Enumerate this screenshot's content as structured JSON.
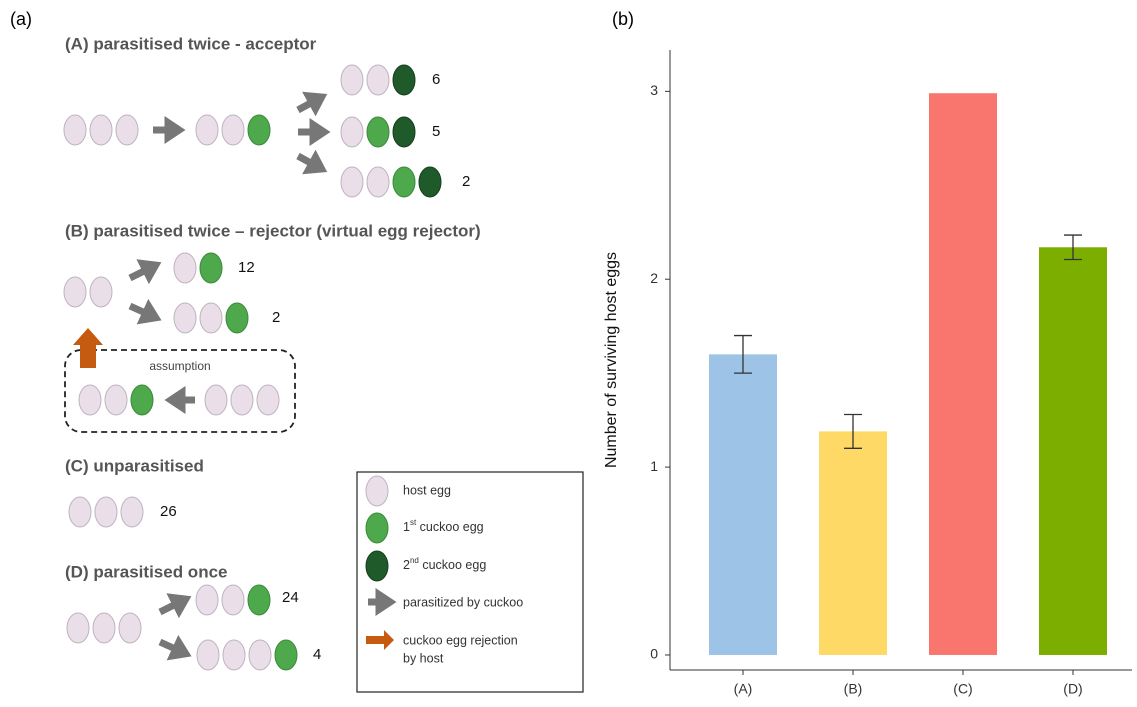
{
  "panel_a": {
    "label": "(a)",
    "groups": [
      {
        "title": "(A) parasitised twice - acceptor",
        "counts": [
          6,
          5,
          2
        ]
      },
      {
        "title": "(B) parasitised twice – rejector (virtual egg rejector)",
        "counts": [
          12,
          2
        ],
        "assumption": "assumption"
      },
      {
        "title": "(C) unparasitised",
        "counts": [
          26
        ]
      },
      {
        "title": "(D) parasitised once",
        "counts": [
          24,
          4
        ]
      }
    ],
    "legend": [
      {
        "text": "host egg"
      },
      {
        "pre": "1",
        "sup": "st",
        "post": " cuckoo egg"
      },
      {
        "pre": "2",
        "sup": "nd",
        "post": " cuckoo egg"
      },
      {
        "text": "parasitized by cuckoo"
      },
      {
        "line1": "cuckoo egg rejection",
        "line2": "by host"
      }
    ]
  },
  "chart_data": {
    "type": "bar",
    "panel_label": "(b)",
    "ylabel": "Number of surviving host eggs",
    "categories": [
      "(A)",
      "(B)",
      "(C)",
      "(D)"
    ],
    "values": [
      1.6,
      1.19,
      2.99,
      2.17
    ],
    "errors": [
      0.1,
      0.09,
      null,
      0.065
    ],
    "colors": [
      "#9dc3e6",
      "#ffd966",
      "#f8766d",
      "#7cae00"
    ],
    "ylim": [
      -0.08,
      3.22
    ],
    "yticks": [
      0,
      1,
      2,
      3
    ]
  }
}
